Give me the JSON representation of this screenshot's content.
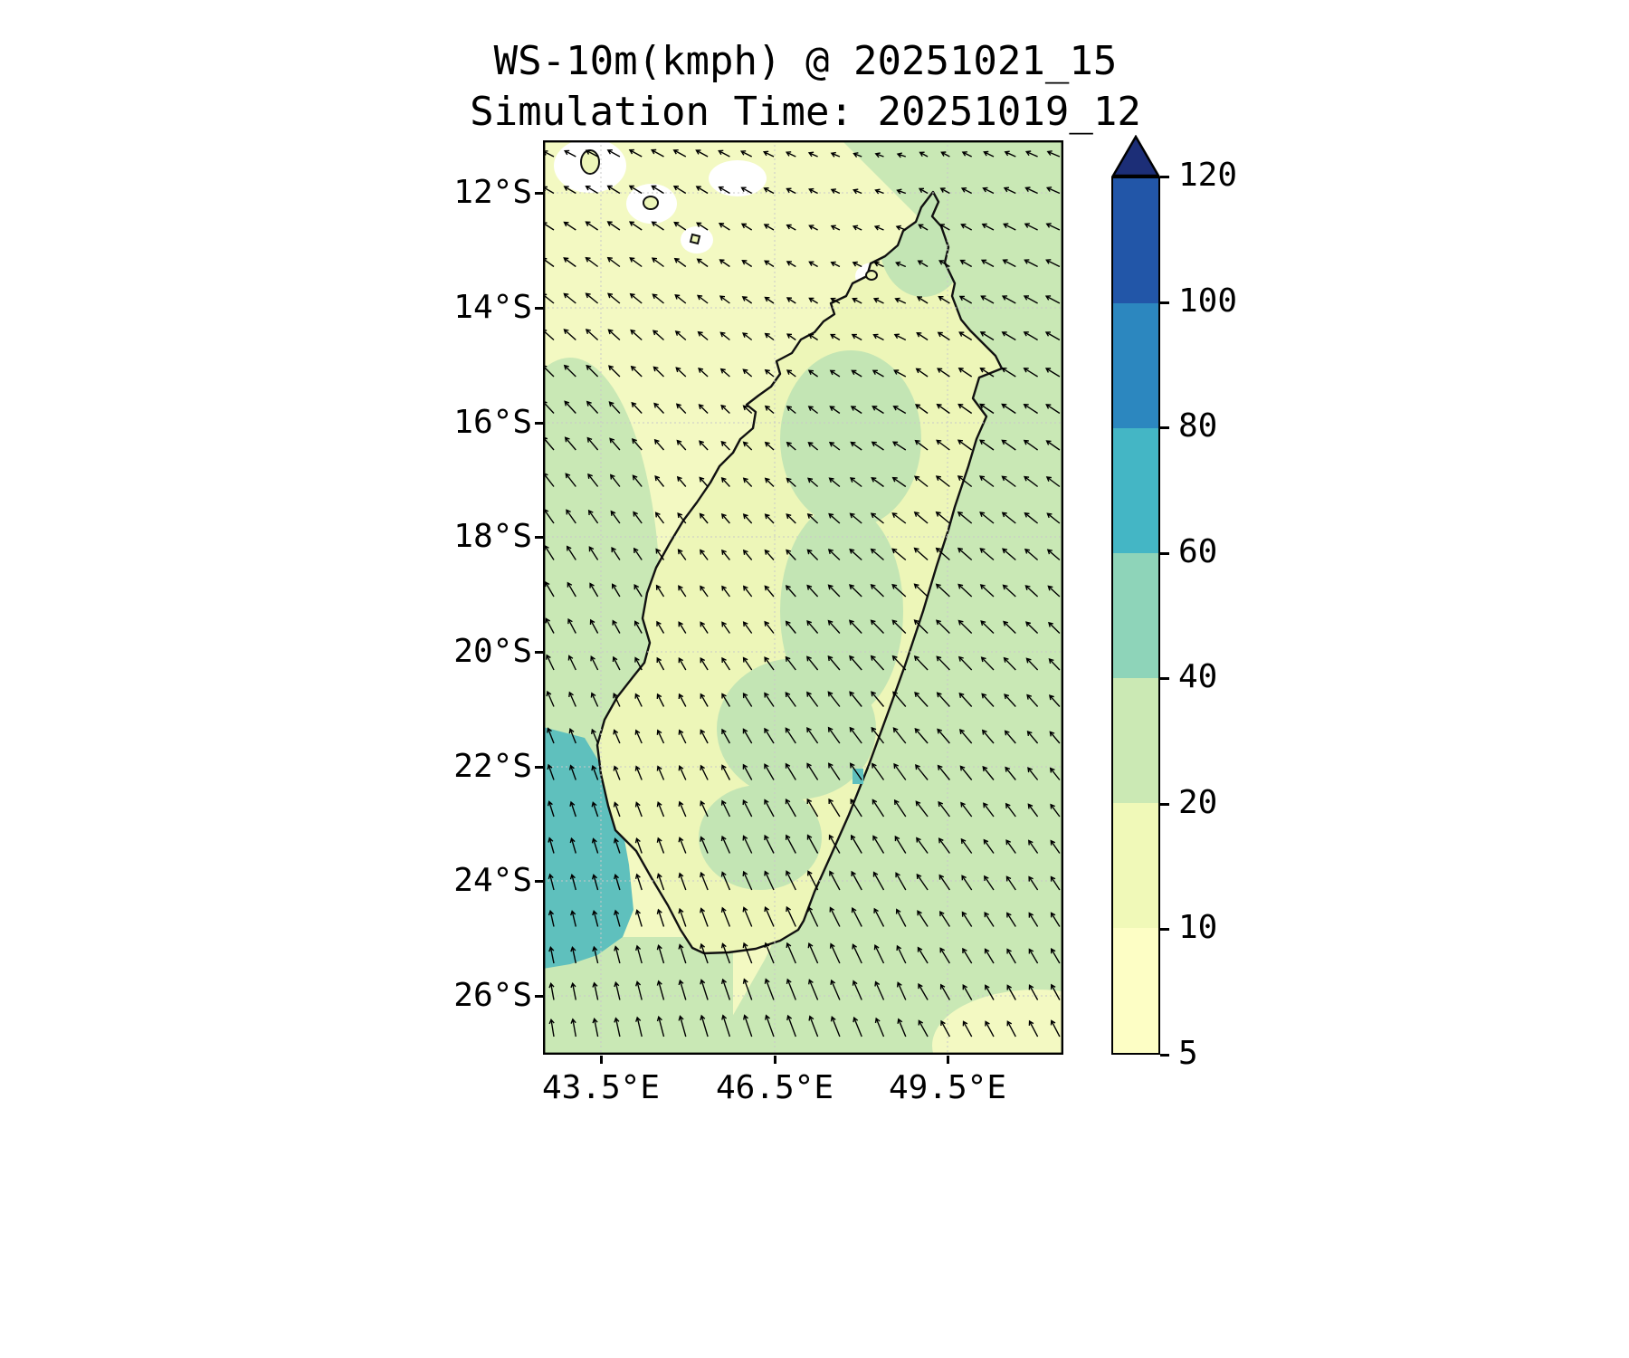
{
  "title": {
    "line1": "WS-10m(kmph) @ 20251021_15",
    "line2": "Simulation Time: 20251019_12"
  },
  "axes": {
    "lat_ticks": [
      "12°S",
      "14°S",
      "16°S",
      "18°S",
      "20°S",
      "22°S",
      "24°S",
      "26°S"
    ],
    "lon_ticks": [
      "43.5°E",
      "46.5°E",
      "49.5°E"
    ]
  },
  "colorbar": {
    "ticks_bottom_to_top": [
      "5",
      "10",
      "20",
      "40",
      "60",
      "80",
      "100",
      "120"
    ]
  },
  "colors": {
    "ocean_pale": "#f3f9c2",
    "ocean_green": "#c9e8b5",
    "land_pale": "#edf6b8",
    "land_green": "#c3e5b4",
    "sw_teal": "#5fc0bd",
    "white_patch": "#ffffff",
    "coast": "#111111",
    "grid": "#c9c9c9",
    "arrow": "#000000"
  },
  "chart_data": {
    "type": "heatmap",
    "title": "WS-10m(kmph) @ 20251021_15",
    "subtitle": "Simulation Time: 20251019_12",
    "variable": "WS-10m",
    "units": "kmph",
    "valid_time": "20251021_15",
    "simulation_time": "20251019_12",
    "region": "Madagascar and surrounding ocean",
    "lon_range": [
      42.5,
      51.5
    ],
    "lat_range": [
      -27.3,
      -11.1
    ],
    "x_tick_values": [
      43.5,
      46.5,
      49.5
    ],
    "y_tick_values": [
      -12,
      -14,
      -16,
      -18,
      -20,
      -22,
      -24,
      -26
    ],
    "colorbar_levels": [
      5,
      10,
      20,
      40,
      60,
      80,
      100,
      120
    ],
    "colorbar_colors": [
      "#fdfec5",
      "#f0f9b8",
      "#cbe9b4",
      "#8ed4b9",
      "#44b6c5",
      "#2c87bf",
      "#2256a8"
    ],
    "colorbar_extend_color": "#1c2e77",
    "colorbar_extend": "max",
    "overlay": "10m wind vectors (quiver); winds mostly 10-40 kmph, a 40-60 kmph patch offshore southwest Madagascar; flow points north-westward in the south and east, weaker westward flow in the north",
    "grid": true
  }
}
